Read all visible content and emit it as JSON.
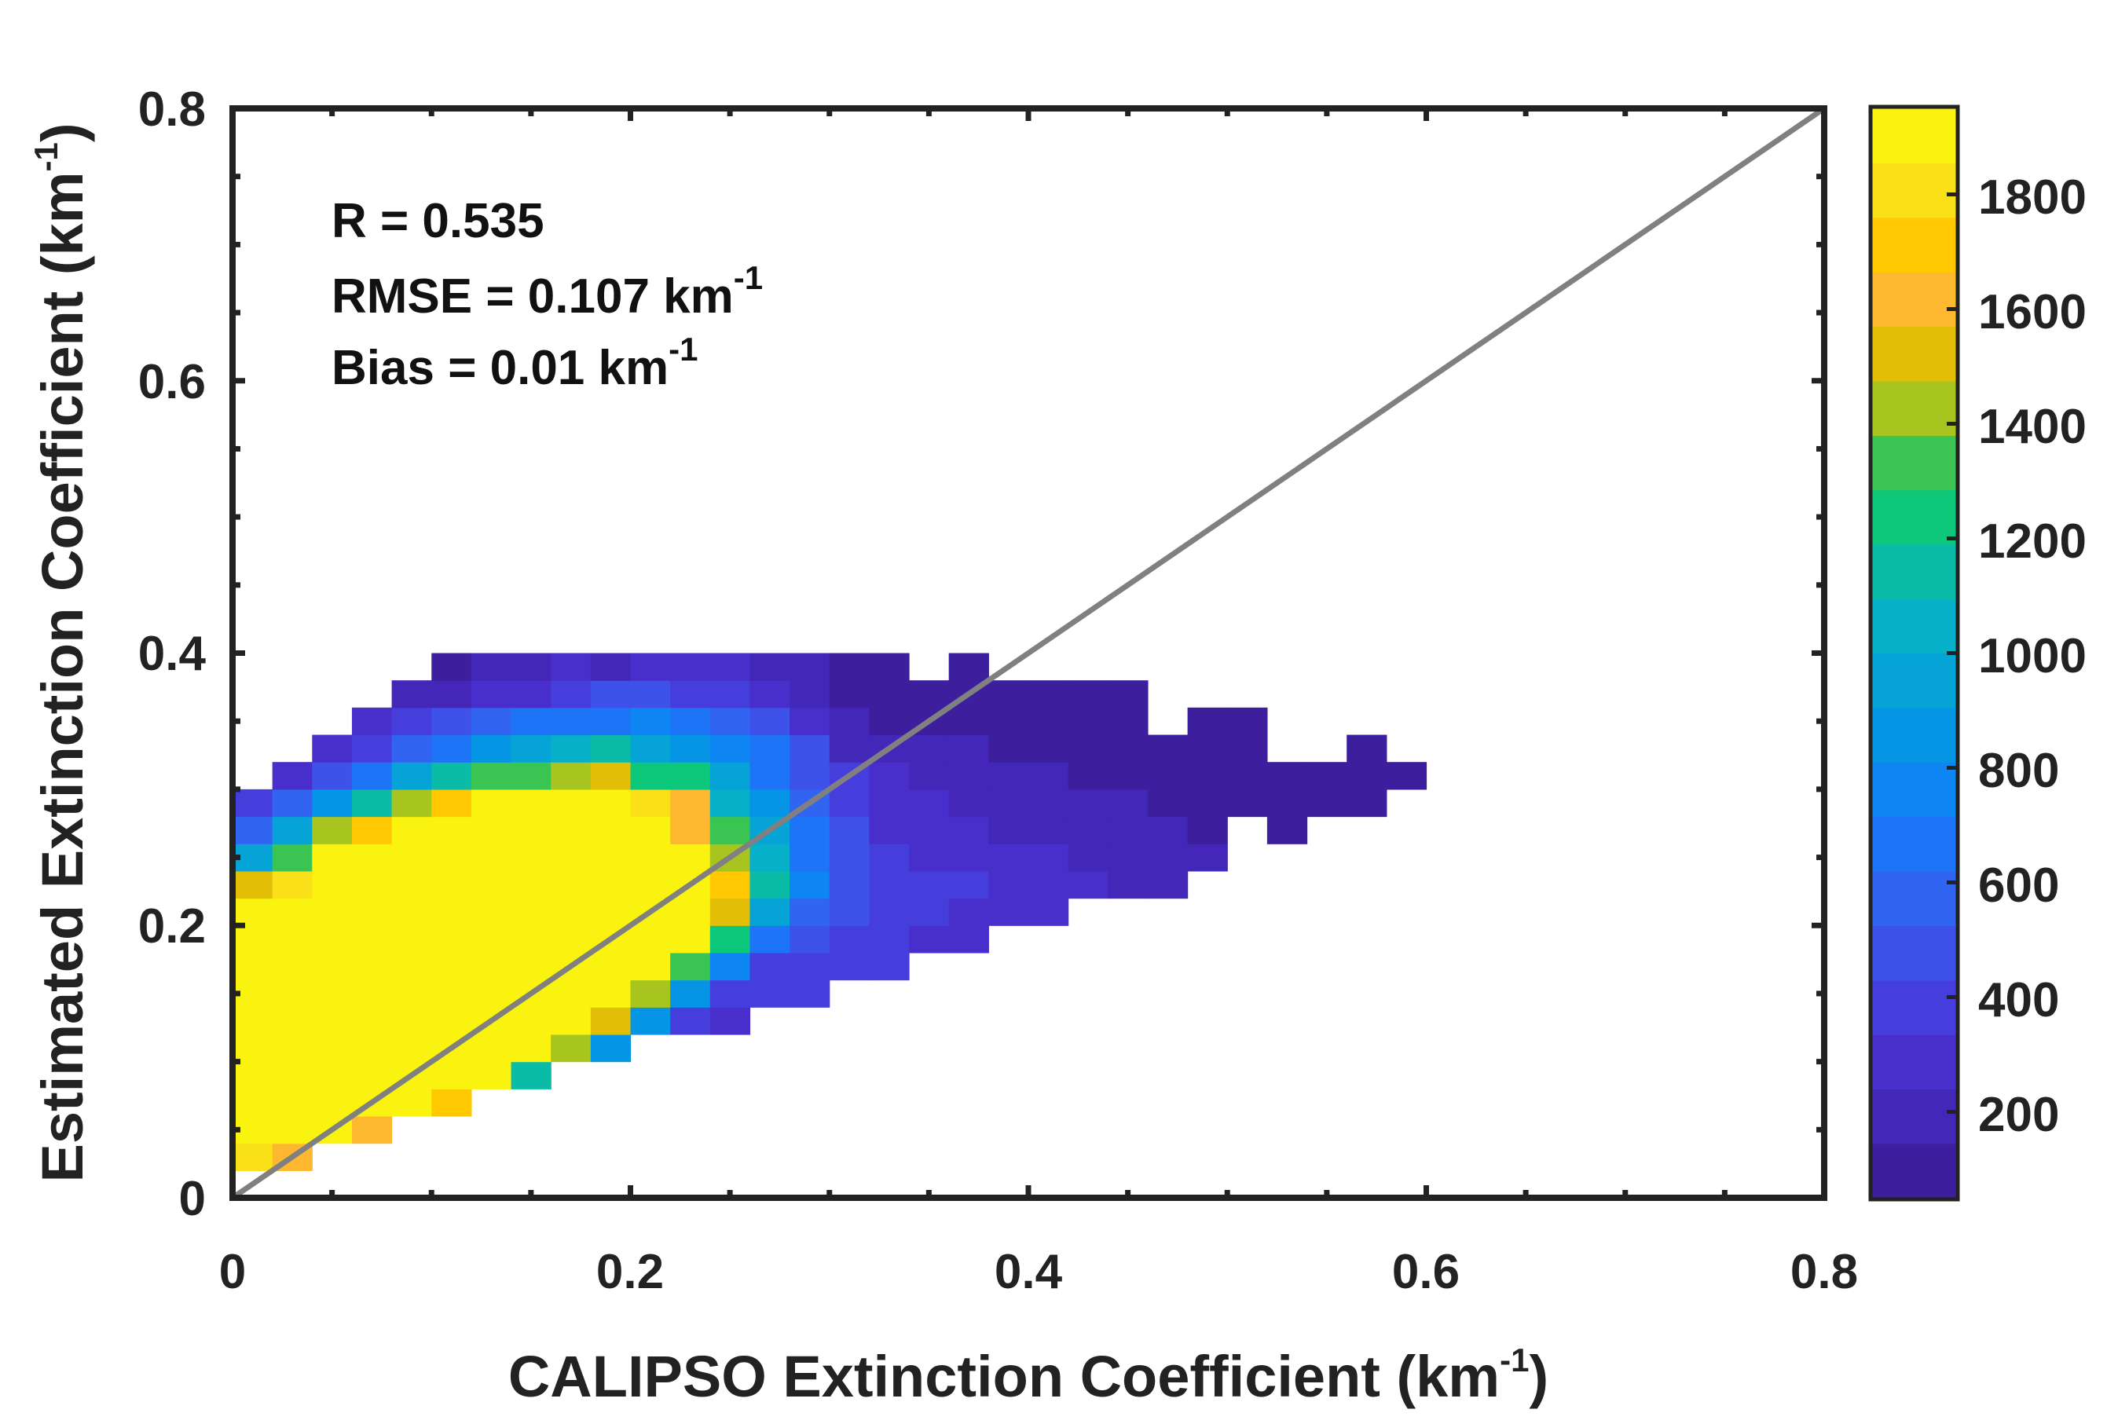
{
  "chart_data": {
    "type": "heatmap",
    "title": "",
    "xlabel": "CALIPSO Extinction Coefficient",
    "xlabel_unit": "(km",
    "xlabel_unit_exp": "-1",
    "xlabel_unit_close": ")",
    "ylabel": "Estimated Extinction Coefficient",
    "ylabel_unit": "(km",
    "ylabel_unit_exp": "-1",
    "ylabel_unit_close": ")",
    "xlim": [
      0,
      0.8
    ],
    "ylim": [
      0,
      0.8
    ],
    "xticks": [
      "0",
      "0.2",
      "0.4",
      "0.6",
      "0.8"
    ],
    "yticks": [
      "0",
      "0.2",
      "0.4",
      "0.6",
      "0.8"
    ],
    "one_to_one_line": true,
    "bin_size": 0.02,
    "stats": {
      "r_line": "R = 0.535",
      "rmse_line": "RMSE = 0.107 km",
      "rmse_exp": "-1",
      "bias_line": "Bias = 0.01 km",
      "bias_exp": "-1"
    },
    "colorbar": {
      "range": [
        50,
        1950
      ],
      "ticks": [
        "200",
        "400",
        "600",
        "800",
        "1000",
        "1200",
        "1400",
        "1600",
        "1800"
      ],
      "tick_values": [
        200,
        400,
        600,
        800,
        1000,
        1200,
        1400,
        1600,
        1800
      ],
      "colors": [
        "#3D1F9E",
        "#4327B8",
        "#482FCC",
        "#463EDC",
        "#3E52EA",
        "#3264F2",
        "#1E74F6",
        "#0D85F2",
        "#0595E4",
        "#06A3D6",
        "#05B0C8",
        "#0ABCA8",
        "#0DC87A",
        "#3AC452",
        "#A8C41E",
        "#E2BF06",
        "#FDB830",
        "#FFC800",
        "#FAE018",
        "#F9F30F"
      ]
    },
    "density": {
      "description": "Counts per 0.02 x 0.02 bin; dense core near x 0.01-0.16, y 0.05-0.19",
      "x_range": [
        0.0,
        0.6
      ],
      "y_range": [
        0.02,
        0.4
      ]
    }
  }
}
